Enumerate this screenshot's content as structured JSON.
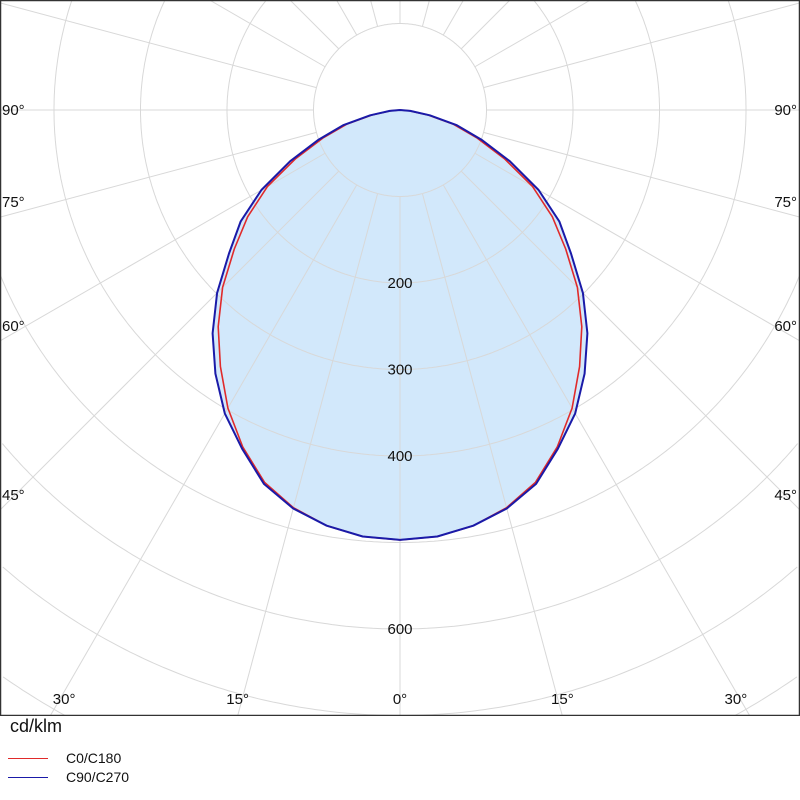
{
  "chart_data": {
    "type": "polar",
    "unit_label": "cd/klm",
    "radial_ticks": [
      100,
      200,
      300,
      400,
      500,
      600,
      700,
      800,
      900
    ],
    "radial_tick_labels": [
      "200",
      "300",
      "400",
      "600"
    ],
    "radial_tick_label_values": [
      200,
      300,
      400,
      600
    ],
    "angle_grid_step": 15,
    "side_angle_labels": [
      "90°",
      "75°",
      "60°",
      "45°"
    ],
    "side_angle_values": [
      90,
      75,
      60,
      45
    ],
    "bottom_angle_labels": [
      "30°",
      "15°",
      "0°",
      "15°",
      "30°"
    ],
    "bottom_angle_values": [
      -30,
      -15,
      0,
      15,
      30
    ],
    "gamma": [
      0,
      5,
      10,
      15,
      20,
      25,
      30,
      35,
      40,
      45,
      50,
      55,
      60,
      65,
      70,
      75,
      80,
      85,
      90
    ],
    "series": [
      {
        "name": "C0/C180",
        "color": "#e02a2a",
        "values": [
          497,
          495,
          488,
          476,
          458,
          430,
          398,
          362,
          327,
          290,
          250,
          215,
          177,
          133,
          95,
          64,
          33,
          11,
          0
        ]
      },
      {
        "name": "C90/C270",
        "color": "#1a1aa8",
        "values": [
          497,
          495,
          488,
          477,
          460,
          432,
          405,
          372,
          337,
          299,
          258,
          225,
          185,
          140,
          100,
          68,
          35,
          12,
          0
        ]
      }
    ],
    "fill_color": "#d2e8fb",
    "grid": true
  }
}
